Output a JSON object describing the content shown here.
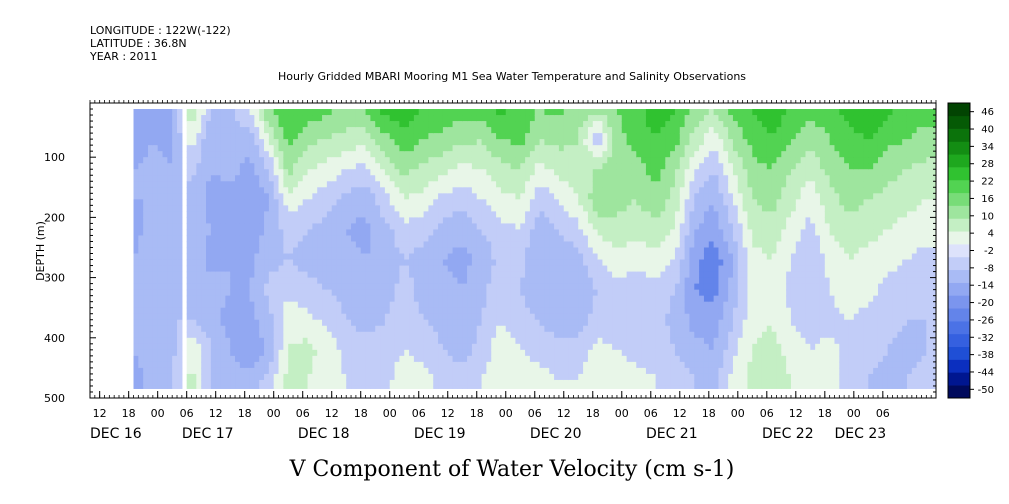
{
  "header": {
    "longitude": "LONGITUDE : 122W(-122)",
    "latitude": "LATITUDE : 36.8N",
    "year": "YEAR : 2011"
  },
  "chart_data": {
    "type": "heatmap",
    "title": "Hourly Gridded MBARI Mooring M1 Sea Water Temperature and Salinity Observations",
    "xlabel": "V Component of Water Velocity (cm s-1)",
    "ylabel": "DEPTH (m)",
    "y_axis": {
      "range": [
        500,
        10
      ],
      "inverted": true,
      "ticks": [
        100,
        200,
        300,
        400,
        500
      ]
    },
    "x_axis": {
      "range": [
        "2011-12-16T10:00",
        "2011-12-23T17:00"
      ],
      "hour_ticks": [
        {
          "time": "2011-12-16T12:00",
          "label": "12"
        },
        {
          "time": "2011-12-16T18:00",
          "label": "18"
        },
        {
          "time": "2011-12-17T00:00",
          "label": "00"
        },
        {
          "time": "2011-12-17T06:00",
          "label": "06"
        },
        {
          "time": "2011-12-17T12:00",
          "label": "12"
        },
        {
          "time": "2011-12-17T18:00",
          "label": "18"
        },
        {
          "time": "2011-12-18T00:00",
          "label": "00"
        },
        {
          "time": "2011-12-18T06:00",
          "label": "06"
        },
        {
          "time": "2011-12-18T12:00",
          "label": "12"
        },
        {
          "time": "2011-12-18T18:00",
          "label": "18"
        },
        {
          "time": "2011-12-19T00:00",
          "label": "00"
        },
        {
          "time": "2011-12-19T06:00",
          "label": "06"
        },
        {
          "time": "2011-12-19T12:00",
          "label": "12"
        },
        {
          "time": "2011-12-19T18:00",
          "label": "18"
        },
        {
          "time": "2011-12-20T00:00",
          "label": "00"
        },
        {
          "time": "2011-12-20T06:00",
          "label": "06"
        },
        {
          "time": "2011-12-20T12:00",
          "label": "12"
        },
        {
          "time": "2011-12-20T18:00",
          "label": "18"
        },
        {
          "time": "2011-12-21T00:00",
          "label": "00"
        },
        {
          "time": "2011-12-21T06:00",
          "label": "06"
        },
        {
          "time": "2011-12-21T12:00",
          "label": "12"
        },
        {
          "time": "2011-12-21T18:00",
          "label": "18"
        },
        {
          "time": "2011-12-22T00:00",
          "label": "00"
        },
        {
          "time": "2011-12-22T06:00",
          "label": "06"
        },
        {
          "time": "2011-12-22T12:00",
          "label": "12"
        },
        {
          "time": "2011-12-22T18:00",
          "label": "18"
        },
        {
          "time": "2011-12-23T00:00",
          "label": "00"
        },
        {
          "time": "2011-12-23T06:00",
          "label": "06"
        }
      ],
      "day_labels": [
        {
          "time": "2011-12-16T10:00",
          "label": "DEC 16"
        },
        {
          "time": "2011-12-17T05:00",
          "label": "DEC 17"
        },
        {
          "time": "2011-12-18T05:00",
          "label": "DEC 18"
        },
        {
          "time": "2011-12-19T05:00",
          "label": "DEC 19"
        },
        {
          "time": "2011-12-20T05:00",
          "label": "DEC 20"
        },
        {
          "time": "2011-12-21T05:00",
          "label": "DEC 21"
        },
        {
          "time": "2011-12-22T05:00",
          "label": "DEC 22"
        },
        {
          "time": "2011-12-22T20:00",
          "label": "DEC 23"
        }
      ]
    },
    "data_extent": {
      "time": [
        "2011-12-16T19:00",
        "2011-12-23T17:00"
      ],
      "depth": [
        20,
        484
      ]
    },
    "gaps": [
      {
        "time": [
          "2011-12-17T05:00",
          "2011-12-17T06:00"
        ],
        "depth": [
          10,
          500
        ]
      }
    ],
    "colorbar": {
      "levels": [
        -50,
        -44,
        -38,
        -32,
        -26,
        -20,
        -14,
        -8,
        -2,
        4,
        10,
        16,
        22,
        28,
        34,
        40,
        46
      ],
      "colors": [
        "#000a5c",
        "#001690",
        "#0b2fbf",
        "#1f4fd6",
        "#3560e0",
        "#4b72e6",
        "#6384ea",
        "#7b95ee",
        "#92a8f2",
        "#a9bbf5",
        "#c2cdf8",
        "#dde2fb",
        "#e8f6e8",
        "#c4efc4",
        "#9ee59e",
        "#78dc78",
        "#52d352",
        "#30c230",
        "#1ea81e",
        "#138d13",
        "#0b730b",
        "#055a05",
        "#024402"
      ]
    },
    "columns": [
      {
        "time": "2011-12-16T19:00",
        "profile": [
          -20,
          -18,
          -14,
          -14,
          -16,
          -14,
          -12,
          -12,
          -14,
          -16
        ]
      },
      {
        "time": "2011-12-16T23:00",
        "profile": [
          -16,
          -14,
          -12,
          -14,
          -12,
          -10,
          -12,
          -14,
          -12,
          -12
        ]
      },
      {
        "time": "2011-12-17T03:00",
        "profile": [
          -14,
          -16,
          -14,
          -10,
          -12,
          -12,
          -10,
          -8,
          -10,
          -8
        ]
      },
      {
        "time": "2011-12-17T07:00",
        "profile": [
          10,
          2,
          -6,
          -10,
          -12,
          -10,
          -10,
          -8,
          4,
          6
        ]
      },
      {
        "time": "2011-12-17T11:00",
        "profile": [
          -8,
          -14,
          -14,
          -16,
          -14,
          -16,
          -12,
          -12,
          -8,
          -8
        ]
      },
      {
        "time": "2011-12-17T15:00",
        "profile": [
          -10,
          -8,
          -12,
          -16,
          -18,
          -14,
          -14,
          -16,
          -14,
          -12
        ]
      },
      {
        "time": "2011-12-17T19:00",
        "profile": [
          -2,
          -12,
          -16,
          -20,
          -18,
          -16,
          -14,
          -16,
          -20,
          -10
        ]
      },
      {
        "time": "2011-12-17T23:00",
        "profile": [
          16,
          4,
          -8,
          -14,
          -12,
          -10,
          -6,
          -10,
          -12,
          -6
        ]
      },
      {
        "time": "2011-12-18T03:00",
        "profile": [
          22,
          18,
          12,
          2,
          -6,
          -8,
          -4,
          2,
          4,
          6
        ]
      },
      {
        "time": "2011-12-18T07:00",
        "profile": [
          20,
          12,
          4,
          -2,
          -8,
          -10,
          -6,
          0,
          6,
          4
        ]
      },
      {
        "time": "2011-12-18T11:00",
        "profile": [
          18,
          10,
          2,
          -6,
          -10,
          -12,
          -8,
          -4,
          2,
          0
        ]
      },
      {
        "time": "2011-12-18T15:00",
        "profile": [
          14,
          8,
          -2,
          -10,
          -14,
          -12,
          -10,
          -8,
          -4,
          -2
        ]
      },
      {
        "time": "2011-12-18T19:00",
        "profile": [
          16,
          6,
          -4,
          -12,
          -16,
          -14,
          -10,
          -10,
          -6,
          -4
        ]
      },
      {
        "time": "2011-12-18T23:00",
        "profile": [
          24,
          14,
          6,
          -4,
          -10,
          -12,
          -10,
          -8,
          -6,
          -4
        ]
      },
      {
        "time": "2011-12-19T03:00",
        "profile": [
          26,
          20,
          12,
          4,
          -4,
          -8,
          -6,
          -6,
          -2,
          2
        ]
      },
      {
        "time": "2011-12-19T07:00",
        "profile": [
          22,
          16,
          8,
          2,
          -6,
          -10,
          -10,
          -8,
          -4,
          0
        ]
      },
      {
        "time": "2011-12-19T11:00",
        "profile": [
          20,
          14,
          6,
          -4,
          -10,
          -14,
          -12,
          -10,
          -8,
          -4
        ]
      },
      {
        "time": "2011-12-19T15:00",
        "profile": [
          18,
          12,
          2,
          -6,
          -12,
          -16,
          -14,
          -12,
          -10,
          -6
        ]
      },
      {
        "time": "2011-12-19T19:00",
        "profile": [
          20,
          10,
          4,
          -2,
          -8,
          -12,
          -10,
          -8,
          -6,
          -2
        ]
      },
      {
        "time": "2011-12-19T23:00",
        "profile": [
          24,
          16,
          8,
          2,
          -4,
          -6,
          -4,
          -2,
          2,
          4
        ]
      },
      {
        "time": "2011-12-20T03:00",
        "profile": [
          20,
          18,
          10,
          4,
          -2,
          -6,
          -8,
          -6,
          -2,
          2
        ]
      },
      {
        "time": "2011-12-20T07:00",
        "profile": [
          16,
          10,
          2,
          -6,
          -12,
          -14,
          -12,
          -8,
          -4,
          0
        ]
      },
      {
        "time": "2011-12-20T11:00",
        "profile": [
          18,
          12,
          6,
          -2,
          -8,
          -12,
          -14,
          -12,
          -6,
          -2
        ]
      },
      {
        "time": "2011-12-20T15:00",
        "profile": [
          14,
          10,
          8,
          4,
          -4,
          -10,
          -12,
          -10,
          -6,
          -2
        ]
      },
      {
        "time": "2011-12-20T19:00",
        "profile": [
          12,
          -8,
          10,
          14,
          6,
          -2,
          -8,
          -6,
          0,
          4
        ]
      },
      {
        "time": "2011-12-20T23:00",
        "profile": [
          16,
          14,
          16,
          12,
          8,
          2,
          -4,
          -6,
          -2,
          2
        ]
      },
      {
        "time": "2011-12-21T03:00",
        "profile": [
          20,
          18,
          14,
          10,
          6,
          0,
          -6,
          -8,
          -4,
          0
        ]
      },
      {
        "time": "2011-12-21T07:00",
        "profile": [
          26,
          22,
          18,
          14,
          8,
          2,
          -4,
          -6,
          -4,
          -2
        ]
      },
      {
        "time": "2011-12-21T11:00",
        "profile": [
          22,
          18,
          12,
          8,
          4,
          -2,
          -8,
          -10,
          -8,
          -4
        ]
      },
      {
        "time": "2011-12-21T15:00",
        "profile": [
          14,
          8,
          -2,
          -8,
          -14,
          -18,
          -20,
          -16,
          -12,
          -8
        ]
      },
      {
        "time": "2011-12-21T19:00",
        "profile": [
          10,
          0,
          -8,
          -14,
          -18,
          -24,
          -22,
          -18,
          -14,
          -10
        ]
      },
      {
        "time": "2011-12-21T23:00",
        "profile": [
          18,
          12,
          4,
          -2,
          -8,
          -14,
          -12,
          -8,
          -4,
          0
        ]
      },
      {
        "time": "2011-12-22T03:00",
        "profile": [
          22,
          18,
          14,
          10,
          6,
          2,
          0,
          2,
          4,
          6
        ]
      },
      {
        "time": "2011-12-22T07:00",
        "profile": [
          26,
          22,
          16,
          12,
          8,
          4,
          2,
          4,
          6,
          8
        ]
      },
      {
        "time": "2011-12-22T11:00",
        "profile": [
          22,
          16,
          10,
          6,
          2,
          -2,
          -4,
          -2,
          2,
          4
        ]
      },
      {
        "time": "2011-12-22T15:00",
        "profile": [
          18,
          12,
          6,
          0,
          -4,
          -8,
          -8,
          -6,
          -2,
          0
        ]
      },
      {
        "time": "2011-12-22T19:00",
        "profile": [
          20,
          16,
          12,
          8,
          4,
          0,
          -2,
          -4,
          0,
          2
        ]
      },
      {
        "time": "2011-12-22T23:00",
        "profile": [
          24,
          20,
          16,
          12,
          8,
          4,
          2,
          -2,
          -4,
          -6
        ]
      },
      {
        "time": "2011-12-23T03:00",
        "profile": [
          28,
          22,
          16,
          10,
          6,
          2,
          0,
          -4,
          -6,
          -8
        ]
      },
      {
        "time": "2011-12-23T07:00",
        "profile": [
          24,
          18,
          12,
          8,
          4,
          0,
          -4,
          -6,
          -8,
          -10
        ]
      },
      {
        "time": "2011-12-23T11:00",
        "profile": [
          20,
          16,
          10,
          6,
          2,
          -2,
          -6,
          -8,
          -10,
          -8
        ]
      },
      {
        "time": "2011-12-23T15:00",
        "profile": [
          18,
          14,
          8,
          4,
          0,
          -4,
          -6,
          -8,
          -8,
          -6
        ]
      }
    ],
    "profile_depths": [
      20,
      70,
      120,
      170,
      220,
      270,
      320,
      370,
      420,
      470
    ]
  }
}
